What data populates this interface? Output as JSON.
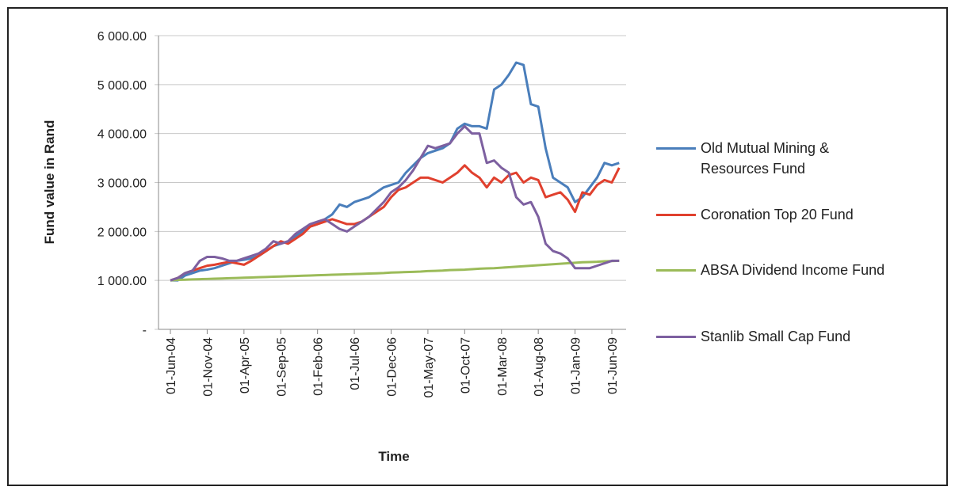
{
  "chart_data": {
    "type": "line",
    "x_label": "Time",
    "y_label": "Fund value in Rand",
    "categories": [
      "01-Jun-04",
      null,
      null,
      null,
      null,
      "01-Nov-04",
      null,
      null,
      null,
      null,
      "01-Apr-05",
      null,
      null,
      null,
      null,
      "01-Sep-05",
      null,
      null,
      null,
      null,
      "01-Feb-06",
      null,
      null,
      null,
      null,
      "01-Jul-06",
      null,
      null,
      null,
      null,
      "01-Dec-06",
      null,
      null,
      null,
      null,
      "01-May-07",
      null,
      null,
      null,
      null,
      "01-Oct-07",
      null,
      null,
      null,
      null,
      "01-Mar-08",
      null,
      null,
      null,
      null,
      "01-Aug-08",
      null,
      null,
      null,
      null,
      "01-Jan-09",
      null,
      null,
      null,
      null,
      "01-Jun-09",
      null
    ],
    "ylim": [
      0,
      6000
    ],
    "yticks": [
      {
        "value": 0,
        "label": "-"
      },
      {
        "value": 1000,
        "label": "1 000.00"
      },
      {
        "value": 2000,
        "label": "2 000.00"
      },
      {
        "value": 3000,
        "label": "3 000.00"
      },
      {
        "value": 4000,
        "label": "4 000.00"
      },
      {
        "value": 5000,
        "label": "5 000.00"
      },
      {
        "value": 6000,
        "label": "6 000.00"
      }
    ],
    "grid": true,
    "legend": "right",
    "series": [
      {
        "name": "Old Mutual Mining & Resources Fund",
        "color": "#4a7ebb",
        "values": [
          1000,
          1000,
          1100,
          1150,
          1200,
          1220,
          1250,
          1300,
          1350,
          1400,
          1420,
          1450,
          1500,
          1600,
          1700,
          1750,
          1800,
          1900,
          2000,
          2100,
          2150,
          2250,
          2350,
          2550,
          2500,
          2600,
          2650,
          2700,
          2800,
          2900,
          2950,
          3000,
          3200,
          3350,
          3500,
          3600,
          3650,
          3700,
          3800,
          4100,
          4200,
          4150,
          4150,
          4100,
          4900,
          5000,
          5200,
          5450,
          5400,
          4600,
          4550,
          3700,
          3100,
          3000,
          2900,
          2600,
          2700,
          2900,
          3100,
          3400,
          3350,
          3400
        ]
      },
      {
        "name": "Coronation Top 20 Fund",
        "color": "#e0402e",
        "values": [
          1000,
          1050,
          1150,
          1200,
          1250,
          1300,
          1320,
          1350,
          1380,
          1350,
          1320,
          1400,
          1500,
          1600,
          1700,
          1800,
          1750,
          1850,
          1950,
          2100,
          2150,
          2200,
          2250,
          2200,
          2150,
          2150,
          2200,
          2300,
          2400,
          2500,
          2700,
          2850,
          2900,
          3000,
          3100,
          3100,
          3050,
          3000,
          3100,
          3200,
          3350,
          3200,
          3100,
          2900,
          3100,
          3000,
          3150,
          3200,
          3000,
          3100,
          3050,
          2700,
          2750,
          2800,
          2650,
          2400,
          2800,
          2750,
          2950,
          3050,
          3000,
          3300
        ]
      },
      {
        "name": "ABSA Dividend Income Fund",
        "color": "#9bbb59",
        "values": [
          1000,
          1010,
          1015,
          1020,
          1025,
          1030,
          1035,
          1040,
          1045,
          1050,
          1055,
          1060,
          1065,
          1070,
          1075,
          1080,
          1085,
          1090,
          1095,
          1100,
          1105,
          1110,
          1115,
          1120,
          1125,
          1130,
          1135,
          1140,
          1145,
          1150,
          1160,
          1165,
          1170,
          1175,
          1180,
          1190,
          1195,
          1200,
          1210,
          1215,
          1220,
          1230,
          1240,
          1245,
          1250,
          1260,
          1270,
          1280,
          1290,
          1300,
          1310,
          1320,
          1330,
          1340,
          1350,
          1360,
          1370,
          1375,
          1380,
          1390,
          1395,
          1400
        ]
      },
      {
        "name": "Stanlib Small Cap Fund",
        "color": "#7d60a0",
        "values": [
          1000,
          1050,
          1150,
          1200,
          1400,
          1480,
          1480,
          1450,
          1400,
          1400,
          1450,
          1500,
          1550,
          1650,
          1800,
          1750,
          1800,
          1950,
          2050,
          2150,
          2200,
          2250,
          2150,
          2050,
          2000,
          2100,
          2200,
          2300,
          2450,
          2600,
          2800,
          2900,
          3050,
          3250,
          3500,
          3750,
          3700,
          3750,
          3800,
          4000,
          4150,
          4000,
          4000,
          3400,
          3450,
          3300,
          3200,
          2700,
          2550,
          2600,
          2300,
          1750,
          1600,
          1550,
          1450,
          1250,
          1250,
          1250,
          1300,
          1350,
          1400,
          1400
        ]
      }
    ]
  }
}
